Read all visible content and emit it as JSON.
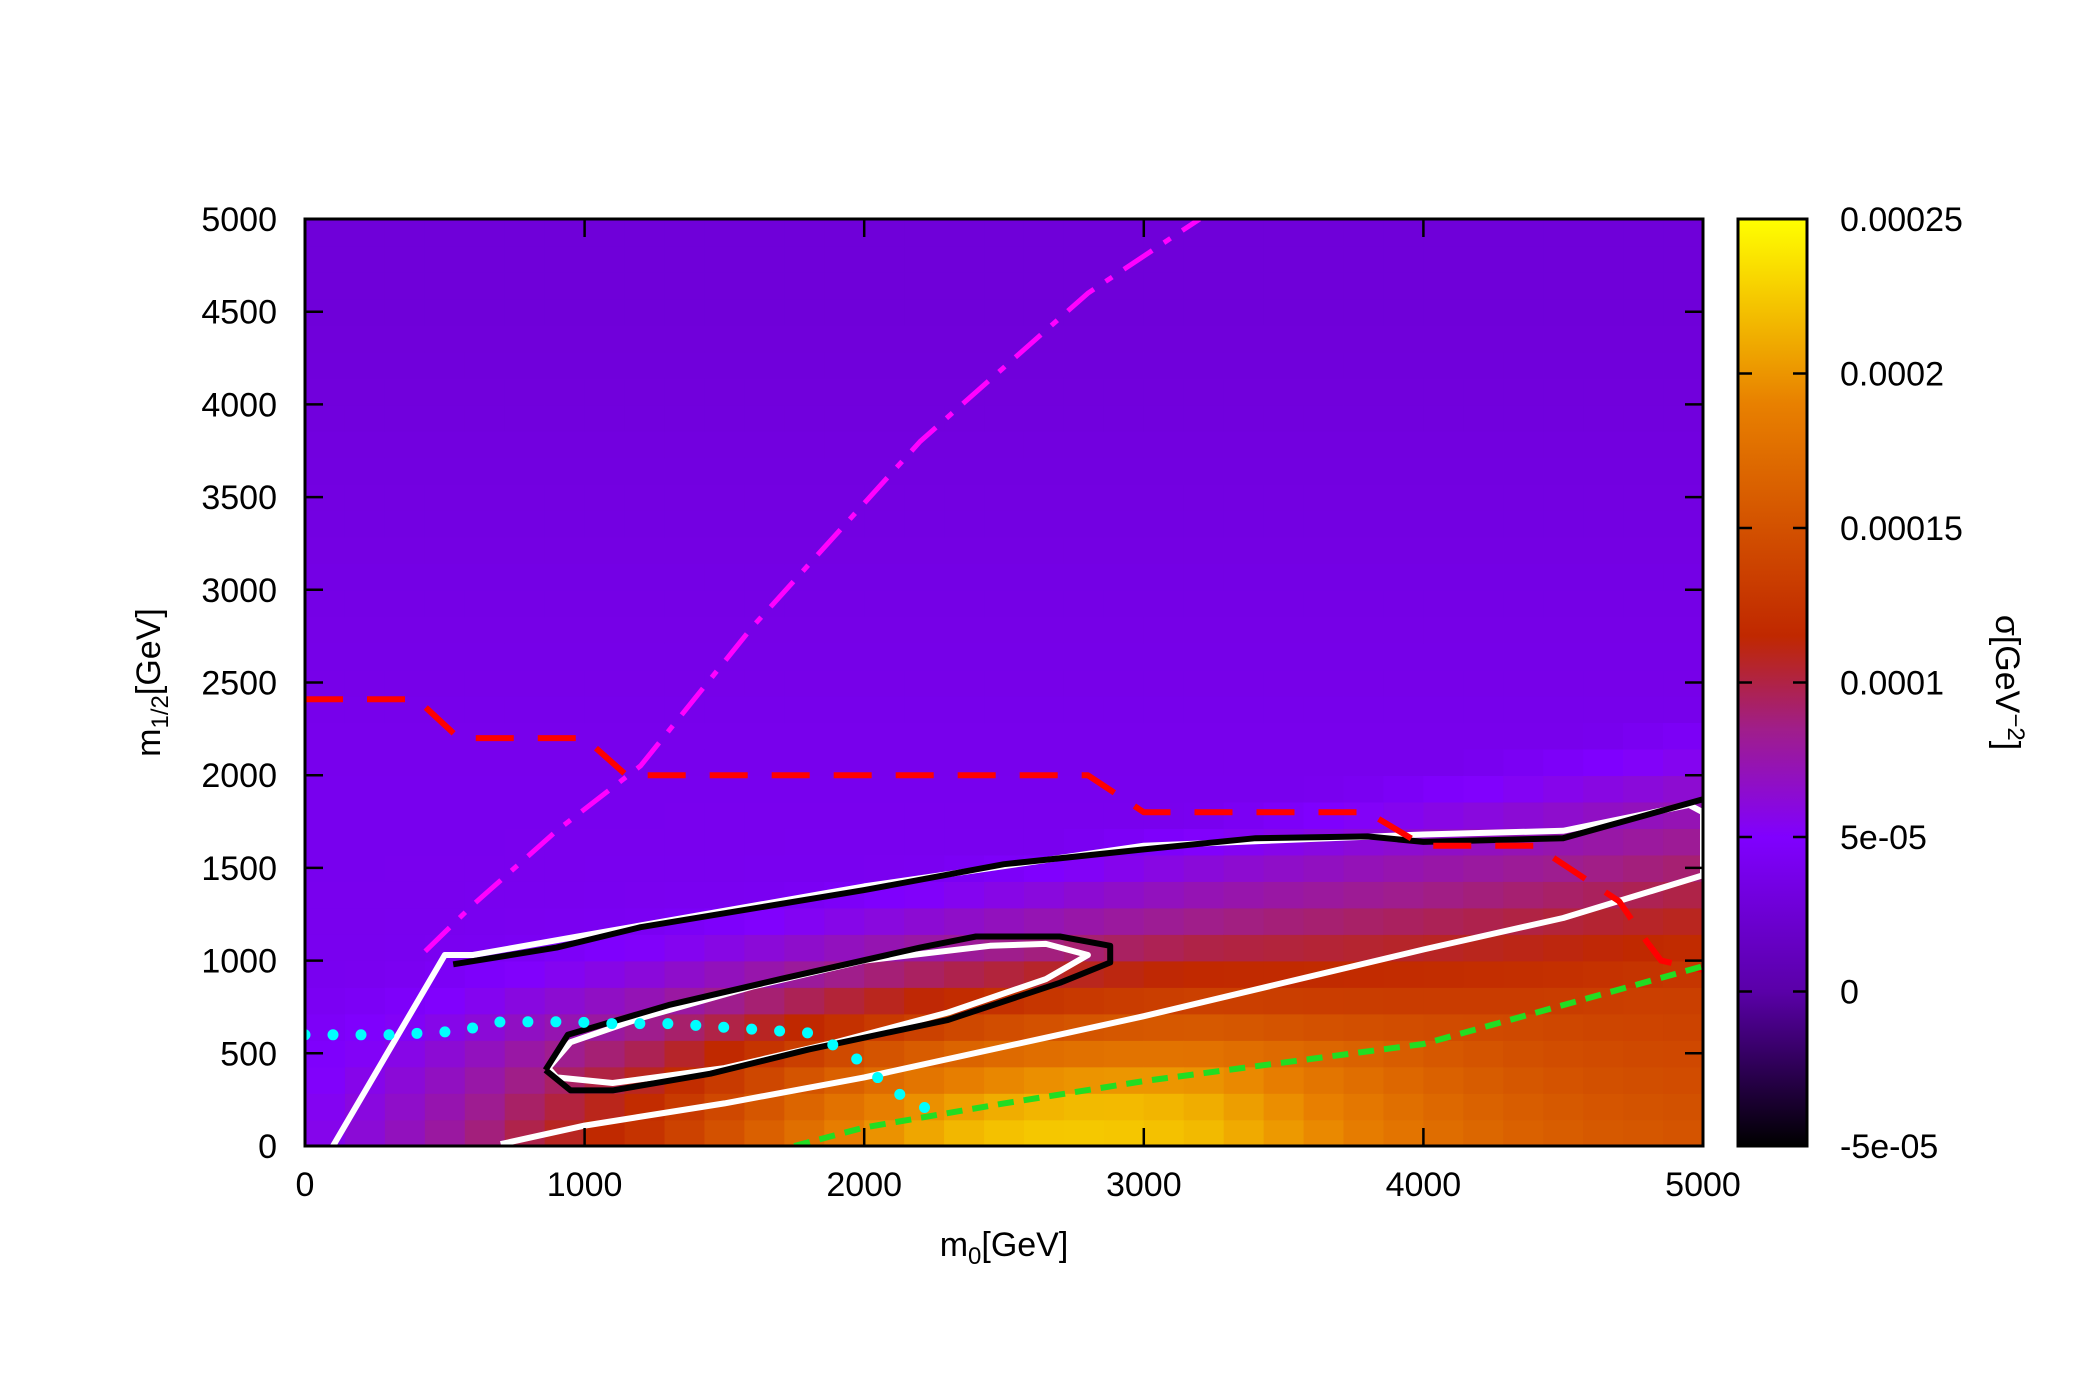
{
  "chart_data": {
    "type": "heatmap",
    "title": "",
    "xlabel": {
      "main": "m",
      "sub": "0",
      "unit": "[GeV]"
    },
    "ylabel": {
      "main": "m",
      "sub": "1/2",
      "unit": "[GeV]"
    },
    "colorbar_label": {
      "main": "σ[GeV",
      "sup": "−2",
      "end": "]"
    },
    "xlim": [
      0,
      5000
    ],
    "ylim": [
      0,
      5000
    ],
    "clim": [
      -5e-05,
      0.00025
    ],
    "x_ticks": [
      {
        "v": 0,
        "label": "0"
      },
      {
        "v": 1000,
        "label": "1000"
      },
      {
        "v": 2000,
        "label": "2000"
      },
      {
        "v": 3000,
        "label": "3000"
      },
      {
        "v": 4000,
        "label": "4000"
      },
      {
        "v": 5000,
        "label": "5000"
      }
    ],
    "y_ticks": [
      {
        "v": 0,
        "label": "0"
      },
      {
        "v": 500,
        "label": "500"
      },
      {
        "v": 1000,
        "label": "1000"
      },
      {
        "v": 1500,
        "label": "1500"
      },
      {
        "v": 2000,
        "label": "2000"
      },
      {
        "v": 2500,
        "label": "2500"
      },
      {
        "v": 3000,
        "label": "3000"
      },
      {
        "v": 3500,
        "label": "3500"
      },
      {
        "v": 4000,
        "label": "4000"
      },
      {
        "v": 4500,
        "label": "4500"
      },
      {
        "v": 5000,
        "label": "5000"
      }
    ],
    "colorbar_ticks": [
      {
        "v": 0.00025,
        "label": "0.00025"
      },
      {
        "v": 0.0002,
        "label": "0.0002"
      },
      {
        "v": 0.00015,
        "label": "0.00015"
      },
      {
        "v": 0.0001,
        "label": "0.0001"
      },
      {
        "v": 5e-05,
        "label": "5e-05"
      },
      {
        "v": 0,
        "label": "0"
      },
      {
        "v": -5e-05,
        "label": "-5e-05"
      }
    ],
    "colormap": [
      "#000000",
      "#5a00a8",
      "#8000ff",
      "#a01e8a",
      "#c02800",
      "#e88000",
      "#ffff00"
    ],
    "colormap_stops": [
      -5e-05,
      0,
      5e-05,
      8.5e-05,
      0.000115,
      0.00019,
      0.00025
    ],
    "heatmap_model": {
      "description": "sigma(m0, m1/2) values in GeV^-2",
      "peak": {
        "x": 2500,
        "y": 100,
        "value": 0.00019
      },
      "background": 4e-05
    },
    "contours": [
      {
        "name": "white-outer",
        "color": "#ffffff",
        "style": "solid",
        "points": [
          [
            100,
            0
          ],
          [
            500,
            1030
          ],
          [
            600,
            1030
          ],
          [
            1050,
            1150
          ],
          [
            2000,
            1400
          ],
          [
            3000,
            1620
          ],
          [
            4000,
            1680
          ],
          [
            4500,
            1700
          ],
          [
            4950,
            1840
          ],
          [
            5000,
            1800
          ],
          [
            5000,
            1460
          ],
          [
            4500,
            1230
          ],
          [
            4000,
            1060
          ],
          [
            3000,
            700
          ],
          [
            2000,
            370
          ],
          [
            1500,
            230
          ],
          [
            1000,
            110
          ],
          [
            700,
            10
          ]
        ]
      },
      {
        "name": "black-outer",
        "color": "#000000",
        "style": "solid",
        "points": [
          [
            530,
            980
          ],
          [
            900,
            1070
          ],
          [
            1200,
            1180
          ],
          [
            2000,
            1380
          ],
          [
            2500,
            1520
          ],
          [
            3000,
            1600
          ],
          [
            3400,
            1660
          ],
          [
            3800,
            1670
          ],
          [
            4000,
            1640
          ],
          [
            4500,
            1660
          ],
          [
            5000,
            1870
          ]
        ]
      },
      {
        "name": "white-inner",
        "color": "#ffffff",
        "style": "solid",
        "points": [
          [
            870,
            420
          ],
          [
            950,
            560
          ],
          [
            1200,
            690
          ],
          [
            1600,
            860
          ],
          [
            2000,
            1000
          ],
          [
            2450,
            1080
          ],
          [
            2650,
            1090
          ],
          [
            2800,
            1030
          ],
          [
            2650,
            900
          ],
          [
            2300,
            720
          ],
          [
            1900,
            560
          ],
          [
            1500,
            420
          ],
          [
            1100,
            340
          ],
          [
            900,
            370
          ],
          [
            870,
            420
          ]
        ]
      },
      {
        "name": "black-inner",
        "color": "#000000",
        "style": "solid",
        "points": [
          [
            860,
            410
          ],
          [
            940,
            600
          ],
          [
            1300,
            760
          ],
          [
            1700,
            900
          ],
          [
            2200,
            1070
          ],
          [
            2400,
            1130
          ],
          [
            2700,
            1130
          ],
          [
            2880,
            1080
          ],
          [
            2880,
            990
          ],
          [
            2700,
            880
          ],
          [
            2300,
            680
          ],
          [
            1800,
            520
          ],
          [
            1450,
            390
          ],
          [
            1100,
            300
          ],
          [
            950,
            300
          ],
          [
            860,
            410
          ]
        ]
      },
      {
        "name": "red-dashed",
        "color": "#ff0000",
        "style": "dashed",
        "points": [
          [
            0,
            2410
          ],
          [
            400,
            2410
          ],
          [
            550,
            2200
          ],
          [
            1000,
            2200
          ],
          [
            1150,
            2000
          ],
          [
            2800,
            2000
          ],
          [
            3000,
            1800
          ],
          [
            3800,
            1800
          ],
          [
            4000,
            1620
          ],
          [
            4400,
            1620
          ],
          [
            4700,
            1320
          ],
          [
            4800,
            1100
          ],
          [
            4850,
            1000
          ],
          [
            5000,
            950
          ]
        ]
      },
      {
        "name": "magenta-dash-dot",
        "color": "#ff00ff",
        "style": "dashdot",
        "points": [
          [
            430,
            1050
          ],
          [
            600,
            1300
          ],
          [
            900,
            1700
          ],
          [
            1200,
            2050
          ],
          [
            1600,
            2800
          ],
          [
            2200,
            3800
          ],
          [
            2800,
            4600
          ],
          [
            3200,
            5000
          ]
        ]
      },
      {
        "name": "cyan-dotted",
        "color": "#00ffff",
        "style": "dotted",
        "points": [
          [
            0,
            600
          ],
          [
            300,
            600
          ],
          [
            550,
            620
          ],
          [
            700,
            670
          ],
          [
            950,
            670
          ],
          [
            1100,
            660
          ],
          [
            1300,
            660
          ],
          [
            1800,
            610
          ],
          [
            1950,
            500
          ],
          [
            2100,
            300
          ],
          [
            2250,
            180
          ]
        ]
      },
      {
        "name": "green-dashed",
        "color": "#22dd22",
        "style": "dashed",
        "points": [
          [
            1750,
            0
          ],
          [
            2000,
            100
          ],
          [
            2500,
            230
          ],
          [
            3000,
            350
          ],
          [
            4000,
            550
          ],
          [
            5000,
            970
          ]
        ]
      }
    ]
  }
}
